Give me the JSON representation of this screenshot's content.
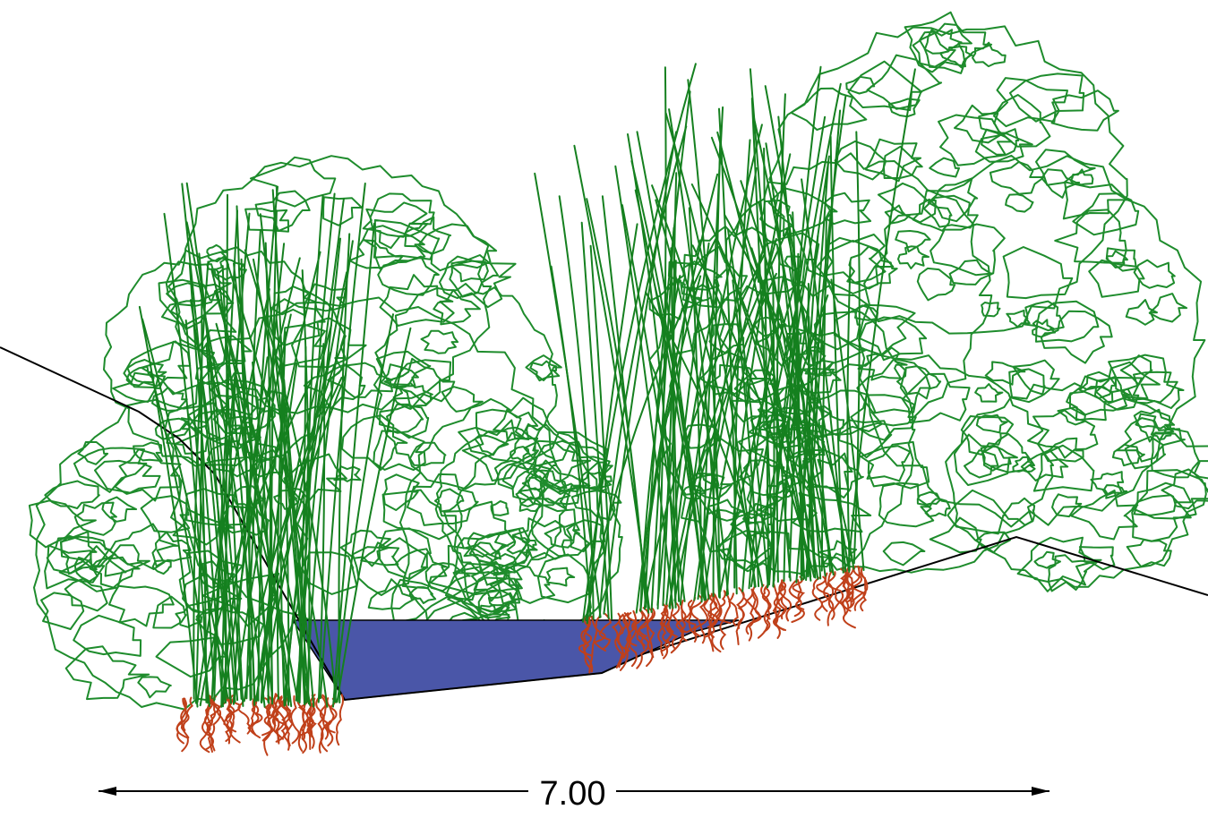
{
  "dimension": {
    "label": "7.00"
  },
  "colors": {
    "foliage": "#1e8c2c",
    "reeds": "#15801f",
    "roots": "#c0401a",
    "water": "#4a56a8",
    "ground": "#000000",
    "dimension": "#000000"
  },
  "elements": {
    "shrubs": [
      "left-shrub",
      "center-shrub",
      "right-tree"
    ],
    "reed_clumps": [
      "left-reed-clump",
      "right-reed-clump"
    ],
    "water": "retention-water"
  }
}
